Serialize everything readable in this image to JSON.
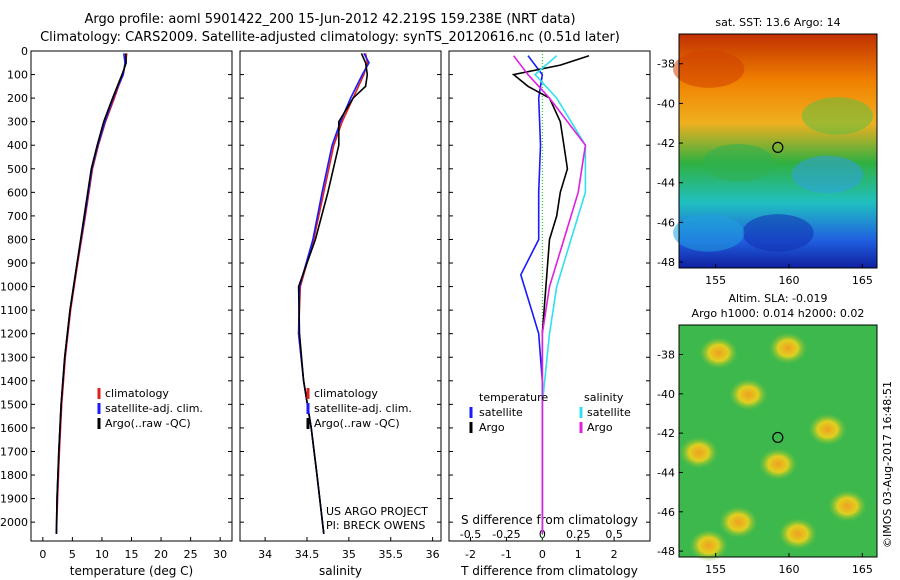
{
  "header": {
    "line1": "Argo profile: aoml 5901422_200 15-Jun-2012 42.219S 159.238E (NRT data)",
    "line2": "Climatology: CARS2009. Satellite-adjusted climatology: synTS_20120616.nc (0.51d later)"
  },
  "colors": {
    "climatology": "#e0201c",
    "satellite": "#1a1aff",
    "argo": "#000000",
    "sat_salinity": "#30e0f0",
    "argo_salinity": "#e020e0"
  },
  "chart_data": [
    {
      "type": "line",
      "id": "temperature",
      "xlabel": "temperature (deg C)",
      "ylabel": "",
      "xlim": [
        -2,
        32
      ],
      "ylim": [
        2080,
        0
      ],
      "xticks": [
        0,
        5,
        10,
        15,
        20,
        25,
        30
      ],
      "yticks": [
        0,
        100,
        200,
        300,
        400,
        500,
        600,
        700,
        800,
        900,
        1000,
        1100,
        1200,
        1300,
        1400,
        1500,
        1600,
        1700,
        1800,
        1900,
        2000
      ],
      "legend": [
        "climatology",
        "satellite-adj. clim.",
        "Argo(..raw -QC)"
      ],
      "series": [
        {
          "name": "climatology",
          "color": "#e0201c",
          "depth": [
            10,
            50,
            100,
            150,
            200,
            300,
            400,
            500,
            700,
            900,
            1100,
            1300,
            1500,
            1700,
            1900,
            2050
          ],
          "values": [
            14.2,
            14,
            13.6,
            12.8,
            12.1,
            10.6,
            9.4,
            8.4,
            7.2,
            5.9,
            4.7,
            3.8,
            3.2,
            2.8,
            2.5,
            2.3
          ]
        },
        {
          "name": "satellite-adj. clim.",
          "color": "#1a1aff",
          "depth": [
            10,
            50,
            100,
            150,
            200,
            300,
            400,
            500,
            700,
            900,
            1100,
            1300,
            1500,
            1700,
            1900,
            2050
          ],
          "values": [
            13.7,
            13.9,
            13.6,
            12.7,
            11.9,
            10.5,
            9.3,
            8.3,
            7.1,
            5.8,
            4.6,
            3.7,
            3.1,
            2.7,
            2.4,
            2.3
          ]
        },
        {
          "name": "Argo(..raw -QC)",
          "color": "#000000",
          "depth": [
            10,
            50,
            100,
            150,
            200,
            300,
            400,
            500,
            700,
            900,
            1100,
            1300,
            1500,
            1700,
            1900,
            2050
          ],
          "values": [
            14,
            14.1,
            13.4,
            12.6,
            11.8,
            10.3,
            9.2,
            8.2,
            7,
            5.8,
            4.6,
            3.7,
            3.1,
            2.7,
            2.4,
            2.3
          ]
        }
      ]
    },
    {
      "type": "line",
      "id": "salinity",
      "xlabel": "salinity",
      "xlim": [
        33.7,
        36.1
      ],
      "ylim": [
        2080,
        0
      ],
      "xticks": [
        34,
        34.5,
        35,
        35.5,
        36
      ],
      "legend": [
        "climatology",
        "satellite-adj. clim.",
        "Argo(..raw -QC)"
      ],
      "annotations": [
        "US ARGO PROJECT",
        "PI: BRECK OWENS"
      ],
      "series": [
        {
          "name": "climatology",
          "color": "#e0201c",
          "depth": [
            10,
            50,
            100,
            200,
            300,
            400,
            600,
            800,
            1000,
            1200,
            1400,
            1600,
            1800,
            2050
          ],
          "values": [
            35.2,
            35.22,
            35.18,
            35.05,
            34.92,
            34.82,
            34.7,
            34.58,
            34.42,
            34.4,
            34.46,
            34.55,
            34.62,
            34.7
          ]
        },
        {
          "name": "satellite-adj. clim.",
          "color": "#1a1aff",
          "depth": [
            10,
            50,
            100,
            200,
            300,
            400,
            600,
            800,
            1000,
            1200,
            1400,
            1600,
            1800,
            2050
          ],
          "values": [
            35.18,
            35.24,
            35.16,
            35.02,
            34.9,
            34.8,
            34.68,
            34.57,
            34.41,
            34.4,
            34.46,
            34.55,
            34.62,
            34.7
          ]
        },
        {
          "name": "Argo(..raw -QC)",
          "color": "#000000",
          "depth": [
            10,
            50,
            100,
            150,
            200,
            300,
            400,
            600,
            800,
            1000,
            1200,
            1400,
            1600,
            1800,
            2050
          ],
          "values": [
            35.15,
            35.2,
            35.22,
            35.2,
            35.05,
            34.88,
            34.88,
            34.75,
            34.6,
            34.4,
            34.41,
            34.46,
            34.55,
            34.62,
            34.7
          ]
        }
      ]
    },
    {
      "type": "line",
      "id": "difference",
      "xlabel": "T difference from climatology",
      "xlabel2": "S difference from climatology",
      "xlim": [
        -2.6,
        3
      ],
      "ylim": [
        2080,
        0
      ],
      "xticks": [
        -2,
        -1,
        0,
        1,
        2
      ],
      "xticks2": [
        "-0.5",
        "-0.25",
        "0",
        "0.25",
        "0.5"
      ],
      "legend_left_title": "temperature",
      "legend_right_title": "salinity",
      "legend_items": [
        "satellite",
        "Argo"
      ],
      "series": [
        {
          "name": "temperature satellite",
          "color": "#1a1aff",
          "depth": [
            20,
            100,
            200,
            400,
            600,
            800,
            950,
            1000,
            1100,
            1200,
            1400,
            1800,
            2050
          ],
          "values": [
            -0.4,
            0,
            -0.1,
            -0.05,
            -0.1,
            -0.1,
            -0.6,
            -0.5,
            -0.3,
            -0.1,
            0,
            0,
            0
          ]
        },
        {
          "name": "temperature Argo",
          "color": "#000000",
          "depth": [
            20,
            60,
            100,
            150,
            200,
            300,
            400,
            500,
            600,
            700,
            800,
            1000,
            1200,
            1400,
            2050
          ],
          "values": [
            1.3,
            0.5,
            -0.8,
            -0.4,
            0.2,
            0.5,
            0.6,
            0.7,
            0.5,
            0.4,
            0.2,
            0.1,
            0,
            0,
            0
          ]
        },
        {
          "name": "salinity satellite",
          "color": "#30e0f0",
          "depth": [
            20,
            100,
            200,
            400,
            600,
            800,
            1000,
            1200,
            1500,
            2050
          ],
          "values": [
            0.1,
            -0.05,
            0.1,
            0.3,
            0.3,
            0.2,
            0.1,
            0.05,
            0,
            0
          ]
        },
        {
          "name": "salinity Argo",
          "color": "#e020e0",
          "depth": [
            20,
            100,
            200,
            400,
            600,
            800,
            1000,
            1200,
            1500,
            2050
          ],
          "values": [
            -0.2,
            -0.1,
            0.05,
            0.3,
            0.25,
            0.15,
            0.05,
            0,
            0,
            0
          ]
        }
      ]
    }
  ],
  "maps": {
    "sst": {
      "title": "sat. SST: 13.6 Argo: 14",
      "xticks": [
        "155",
        "160",
        "165"
      ],
      "yticks": [
        "-38",
        "-40",
        "-42",
        "-44",
        "-46",
        "-48"
      ]
    },
    "sla": {
      "title1": "Altim. SLA: -0.019",
      "title2": "Argo h1000: 0.014 h2000: 0.02",
      "xticks": [
        "155",
        "160",
        "165"
      ],
      "yticks": [
        "-38",
        "-40",
        "-42",
        "-44",
        "-46",
        "-48"
      ]
    }
  },
  "footer": {
    "stamp": "©IMOS 03-Aug-2017 16:48:51"
  }
}
